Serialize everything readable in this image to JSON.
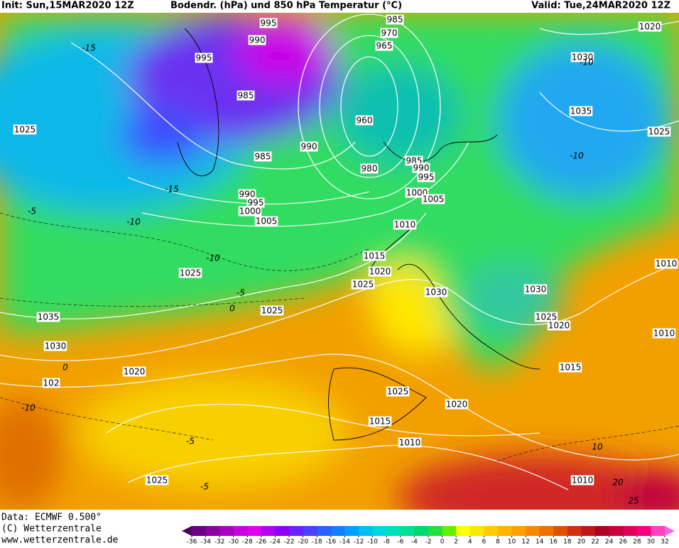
{
  "header": {
    "init": "Init: Sun,15MAR2020 12Z",
    "title": "Bodendr. (hPa) und 850 hPa Temperatur (°C)",
    "valid": "Valid: Tue,24MAR2020 12Z"
  },
  "footer": {
    "data": "Data: ECMWF   0.500°",
    "copyright": "(C) Wetterzentrale",
    "website": "www.wetterzentrale.de"
  },
  "colorbar": {
    "ticks": [
      -36,
      -34,
      -32,
      -30,
      -28,
      -26,
      -24,
      -22,
      -20,
      -18,
      -16,
      -14,
      -12,
      -10,
      -8,
      -6,
      -4,
      -2,
      0,
      2,
      4,
      6,
      8,
      10,
      12,
      14,
      16,
      18,
      20,
      22,
      24,
      26,
      28,
      30,
      32
    ],
    "colors": [
      "#4b0060",
      "#6a0080",
      "#8a00a0",
      "#a800c0",
      "#c800e0",
      "#e000f0",
      "#b000f0",
      "#8a00f8",
      "#6a20ff",
      "#4a40ff",
      "#2a60ff",
      "#1080ff",
      "#00a0ff",
      "#00c0f0",
      "#00d8e0",
      "#00e0b8",
      "#00e090",
      "#00d870",
      "#20e040",
      "#60f000",
      "#ffff00",
      "#ffe600",
      "#ffcc00",
      "#ffb400",
      "#ffa000",
      "#f88800",
      "#f07000",
      "#e05000",
      "#d03010",
      "#c01818",
      "#b00028",
      "#c8003c",
      "#e00058",
      "#f80080",
      "#ff40c0",
      "#ff60e8"
    ]
  },
  "isobar_labels": [
    "995",
    "990",
    "995",
    "985",
    "985",
    "990",
    "960",
    "980",
    "985",
    "990",
    "995",
    "1000",
    "1005",
    "990",
    "995",
    "1000",
    "1005",
    "1010",
    "1015",
    "1020",
    "1025",
    "1030",
    "1025",
    "1025",
    "1035",
    "1030",
    "1020",
    "102",
    "1025",
    "1020",
    "1015",
    "1010",
    "1025",
    "1030",
    "1025",
    "1020",
    "1015",
    "1010",
    "1010",
    "1030",
    "1035",
    "1025",
    "1020",
    "1025",
    "985",
    "970",
    "965",
    "1010"
  ],
  "isotherm_labels": [
    "-15",
    "-15",
    "-10",
    "-5",
    "-10",
    "-5",
    "0",
    "0",
    "-10",
    "-5",
    "-5",
    "10",
    "20",
    "25",
    "-10",
    "-10"
  ]
}
